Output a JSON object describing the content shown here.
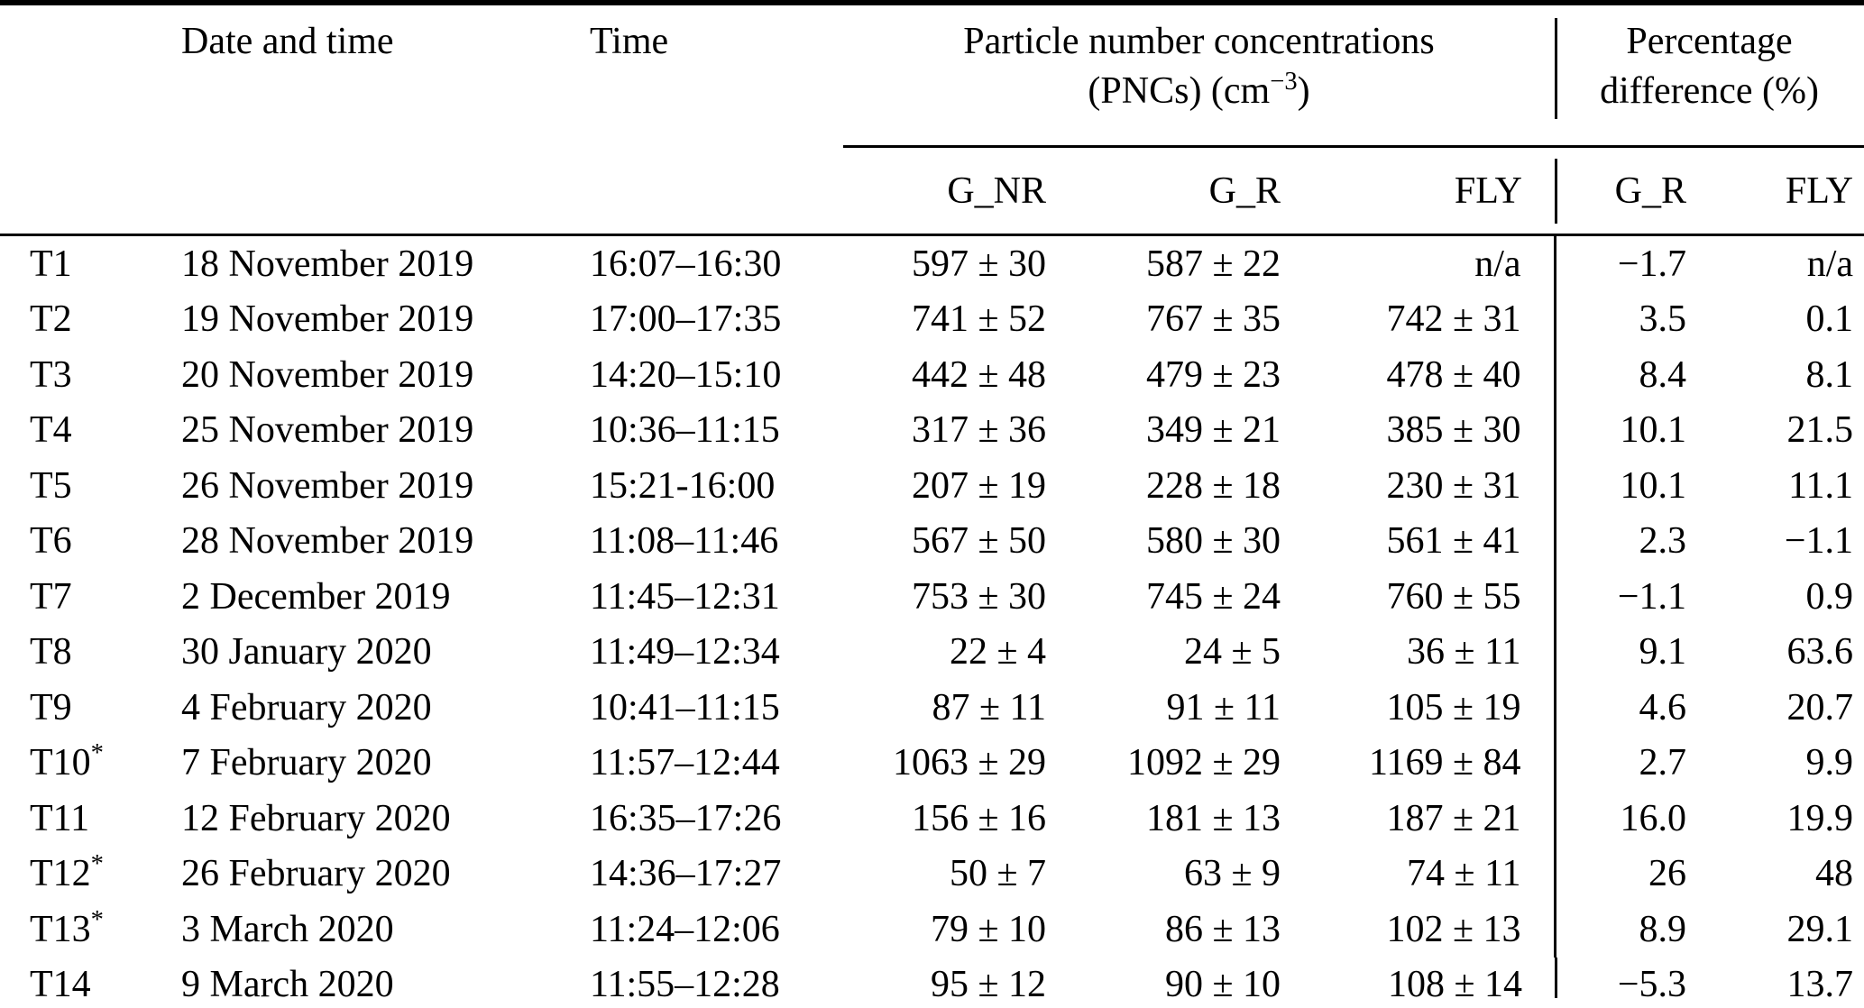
{
  "table": {
    "header": {
      "col_date": "Date and time",
      "col_time": "Time",
      "group_pnc_line1": "Particle number concentrations",
      "group_pnc_line2_pre": "(PNCs) (cm",
      "group_pnc_sup": "−3",
      "group_pnc_line2_post": ")",
      "group_pct_line1": "Percentage",
      "group_pct_line2": "difference (%)",
      "sub": [
        "G_NR",
        "G_R",
        "FLY",
        "G_R",
        "FLY"
      ]
    },
    "rows": [
      {
        "id": "T1",
        "star": false,
        "date": "18 November 2019",
        "time": "16:07–16:30",
        "g_nr": "597 ± 30",
        "g_r": "587 ± 22",
        "fly": "n/a",
        "pd_g_r": "−1.7",
        "pd_fly": "n/a"
      },
      {
        "id": "T2",
        "star": false,
        "date": "19 November 2019",
        "time": "17:00–17:35",
        "g_nr": "741 ± 52",
        "g_r": "767 ± 35",
        "fly": "742 ± 31",
        "pd_g_r": "3.5",
        "pd_fly": "0.1"
      },
      {
        "id": "T3",
        "star": false,
        "date": "20 November 2019",
        "time": "14:20–15:10",
        "g_nr": "442 ± 48",
        "g_r": "479 ± 23",
        "fly": "478 ± 40",
        "pd_g_r": "8.4",
        "pd_fly": "8.1"
      },
      {
        "id": "T4",
        "star": false,
        "date": "25 November 2019",
        "time": "10:36–11:15",
        "g_nr": "317 ± 36",
        "g_r": "349 ± 21",
        "fly": "385 ± 30",
        "pd_g_r": "10.1",
        "pd_fly": "21.5"
      },
      {
        "id": "T5",
        "star": false,
        "date": "26 November 2019",
        "time": "15:21-16:00",
        "g_nr": "207 ± 19",
        "g_r": "228 ± 18",
        "fly": "230 ± 31",
        "pd_g_r": "10.1",
        "pd_fly": "11.1"
      },
      {
        "id": "T6",
        "star": false,
        "date": "28 November 2019",
        "time": "11:08–11:46",
        "g_nr": "567 ± 50",
        "g_r": "580 ± 30",
        "fly": "561 ± 41",
        "pd_g_r": "2.3",
        "pd_fly": "−1.1"
      },
      {
        "id": "T7",
        "star": false,
        "date": "2 December 2019",
        "time": "11:45–12:31",
        "g_nr": "753 ± 30",
        "g_r": "745 ± 24",
        "fly": "760 ± 55",
        "pd_g_r": "−1.1",
        "pd_fly": "0.9"
      },
      {
        "id": "T8",
        "star": false,
        "date": "30 January 2020",
        "time": "11:49–12:34",
        "g_nr": "22 ± 4",
        "g_r": "24 ± 5",
        "fly": "36 ± 11",
        "pd_g_r": "9.1",
        "pd_fly": "63.6"
      },
      {
        "id": "T9",
        "star": false,
        "date": "4 February 2020",
        "time": "10:41–11:15",
        "g_nr": "87 ± 11",
        "g_r": "91 ± 11",
        "fly": "105 ± 19",
        "pd_g_r": "4.6",
        "pd_fly": "20.7"
      },
      {
        "id": "T10",
        "star": true,
        "date": "7 February 2020",
        "time": "11:57–12:44",
        "g_nr": "1063 ± 29",
        "g_r": "1092 ± 29",
        "fly": "1169 ± 84",
        "pd_g_r": "2.7",
        "pd_fly": "9.9"
      },
      {
        "id": "T11",
        "star": false,
        "date": "12 February 2020",
        "time": "16:35–17:26",
        "g_nr": "156 ± 16",
        "g_r": "181 ± 13",
        "fly": "187 ± 21",
        "pd_g_r": "16.0",
        "pd_fly": "19.9"
      },
      {
        "id": "T12",
        "star": true,
        "date": "26 February 2020",
        "time": "14:36–17:27",
        "g_nr": "50 ± 7",
        "g_r": "63 ± 9",
        "fly": "74 ± 11",
        "pd_g_r": "26",
        "pd_fly": "48"
      },
      {
        "id": "T13",
        "star": true,
        "date": "3 March 2020",
        "time": "11:24–12:06",
        "g_nr": "79 ± 10",
        "g_r": "86 ± 13",
        "fly": "102 ± 13",
        "pd_g_r": "8.9",
        "pd_fly": "29.1"
      },
      {
        "id": "T14",
        "star": false,
        "date": "9 March 2020",
        "time": "11:55–12:28",
        "g_nr": "95 ± 12",
        "g_r": "90 ± 10",
        "fly": "108 ± 14",
        "pd_g_r": "−5.3",
        "pd_fly": "13.7"
      }
    ]
  }
}
